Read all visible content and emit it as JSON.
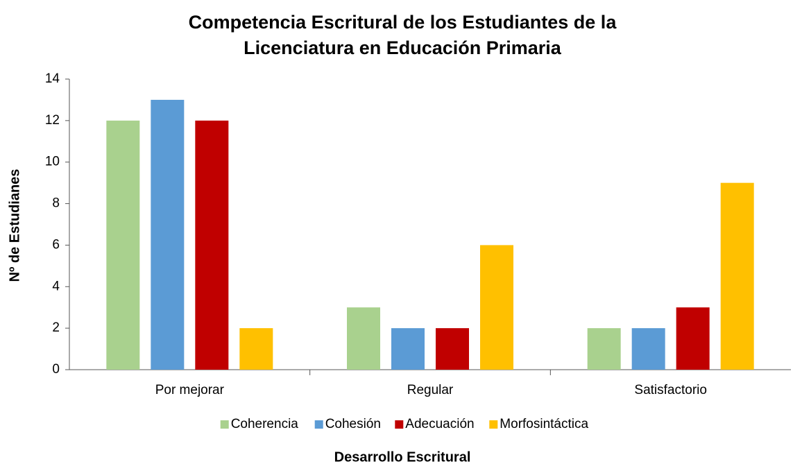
{
  "chart_data": {
    "type": "bar",
    "title": "Competencia Escritural de los Estudiantes de la Licenciatura en Educación Primaria",
    "x_label": "Desarrollo Escritural",
    "y_label": "Nº de Estudianes",
    "categories": [
      "Por mejorar",
      "Regular",
      "Satisfactorio"
    ],
    "series": [
      {
        "name": "Coherencia",
        "color": "#a9d18e",
        "values": [
          12,
          3,
          2
        ]
      },
      {
        "name": "Cohesión",
        "color": "#5b9bd5",
        "values": [
          13,
          2,
          2
        ]
      },
      {
        "name": "Adecuación",
        "color": "#c00000",
        "values": [
          12,
          2,
          3
        ]
      },
      {
        "name": "Morfosintáctica",
        "color": "#ffc000",
        "values": [
          2,
          6,
          9
        ]
      }
    ],
    "ylim": [
      0,
      14
    ],
    "yticks": [
      0,
      2,
      4,
      6,
      8,
      10,
      12,
      14
    ],
    "grid": false,
    "legend": "bottom"
  }
}
